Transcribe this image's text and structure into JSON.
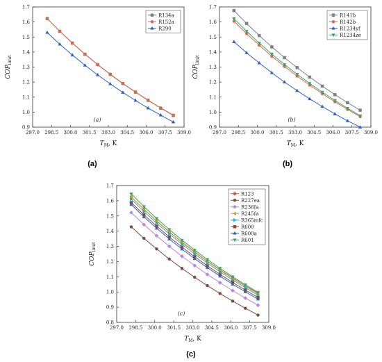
{
  "chart_data": [
    {
      "type": "line",
      "subplot_label": "(a)",
      "caption": "(a)",
      "xlabel": "T_M, K",
      "ylabel": "COP_limit",
      "xlim": [
        297.0,
        309.0
      ],
      "ylim": [
        0.9,
        1.7
      ],
      "xticks": [
        "297.0",
        "298.5",
        "300.0",
        "301.5",
        "303.0",
        "304.5",
        "306.0",
        "307.5",
        "309.0"
      ],
      "yticks": [
        "0.9",
        "1.0",
        "1.1",
        "1.2",
        "1.3",
        "1.4",
        "1.5",
        "1.6",
        "1.7"
      ],
      "legend_position": "top-right",
      "x": [
        298.15,
        299.15,
        300.15,
        301.15,
        302.15,
        303.15,
        304.15,
        305.15,
        306.15,
        307.15,
        308.15
      ],
      "series": [
        {
          "name": "R134a",
          "color": "#7f7f7f",
          "marker": "square",
          "values": [
            1.623,
            1.538,
            1.459,
            1.385,
            1.316,
            1.251,
            1.19,
            1.133,
            1.078,
            1.026,
            0.978
          ]
        },
        {
          "name": "R152a",
          "color": "#d46a4a",
          "marker": "circle",
          "values": [
            1.623,
            1.538,
            1.46,
            1.386,
            1.317,
            1.253,
            1.191,
            1.134,
            1.08,
            1.028,
            0.98
          ]
        },
        {
          "name": "R290",
          "color": "#2f5fc4",
          "marker": "triangle",
          "values": [
            1.53,
            1.452,
            1.38,
            1.312,
            1.248,
            1.188,
            1.131,
            1.078,
            1.027,
            0.98,
            0.934
          ]
        }
      ]
    },
    {
      "type": "line",
      "subplot_label": "(b)",
      "caption": "(b)",
      "xlabel": "T_M, K",
      "ylabel": "COP_limit",
      "xlim": [
        297.0,
        309.0
      ],
      "ylim": [
        0.9,
        1.7
      ],
      "xticks": [
        "297.0",
        "298.5",
        "300.0",
        "301.5",
        "303.0",
        "304.5",
        "306.0",
        "307.5",
        "309.0"
      ],
      "yticks": [
        "0.9",
        "1.0",
        "1.1",
        "1.2",
        "1.3",
        "1.4",
        "1.5",
        "1.6",
        "1.7"
      ],
      "legend_position": "top-right",
      "x": [
        298.15,
        299.15,
        300.15,
        301.15,
        302.15,
        303.15,
        304.15,
        305.15,
        306.15,
        307.15,
        308.15
      ],
      "series": [
        {
          "name": "R141b",
          "color": "#7f7f7f",
          "marker": "square",
          "values": [
            1.676,
            1.59,
            1.51,
            1.434,
            1.363,
            1.296,
            1.233,
            1.173,
            1.116,
            1.063,
            1.013
          ]
        },
        {
          "name": "R142b",
          "color": "#d46a4a",
          "marker": "circle",
          "values": [
            1.605,
            1.522,
            1.445,
            1.372,
            1.304,
            1.24,
            1.18,
            1.123,
            1.069,
            1.018,
            0.97
          ]
        },
        {
          "name": "R1234yf",
          "color": "#2f5fc4",
          "marker": "triangle",
          "values": [
            1.468,
            1.395,
            1.327,
            1.262,
            1.2,
            1.143,
            1.088,
            1.037,
            0.988,
            0.942,
            0.9
          ]
        },
        {
          "name": "R1234ze",
          "color": "#3aa36c",
          "marker": "triangle-down",
          "values": [
            1.622,
            1.538,
            1.46,
            1.386,
            1.317,
            1.252,
            1.191,
            1.133,
            1.078,
            1.026,
            0.976
          ]
        }
      ]
    },
    {
      "type": "line",
      "subplot_label": "(c)",
      "caption": "(c)",
      "xlabel": "T_M, K",
      "ylabel": "COP_limit",
      "xlim": [
        297.0,
        309.0
      ],
      "ylim": [
        0.8,
        1.7
      ],
      "xticks": [
        "297.0",
        "298.5",
        "300.0",
        "301.5",
        "303.0",
        "304.5",
        "306.0",
        "307.5",
        "309.0"
      ],
      "yticks": [
        "0.8",
        "0.9",
        "1.0",
        "1.1",
        "1.2",
        "1.3",
        "1.4",
        "1.5",
        "1.6",
        "1.7"
      ],
      "legend_position": "top-right",
      "x": [
        298.15,
        299.15,
        300.15,
        301.15,
        302.15,
        303.15,
        304.15,
        305.15,
        306.15,
        307.15,
        308.15
      ],
      "series": [
        {
          "name": "R123",
          "color": "#c4574a",
          "marker": "circle",
          "values": [
            1.625,
            1.545,
            1.468,
            1.396,
            1.328,
            1.264,
            1.203,
            1.146,
            1.092,
            1.04,
            0.992
          ]
        },
        {
          "name": "R227ea",
          "color": "#7a4a3c",
          "marker": "circle",
          "values": [
            1.428,
            1.353,
            1.283,
            1.217,
            1.155,
            1.097,
            1.042,
            0.99,
            0.94,
            0.893,
            0.848
          ]
        },
        {
          "name": "R236fa",
          "color": "#b488e0",
          "marker": "diamond",
          "values": [
            1.522,
            1.443,
            1.37,
            1.3,
            1.235,
            1.174,
            1.116,
            1.061,
            1.009,
            0.96,
            0.913
          ]
        },
        {
          "name": "R245fa",
          "color": "#c8a020",
          "marker": "triangle-left",
          "values": [
            1.625,
            1.543,
            1.466,
            1.394,
            1.326,
            1.261,
            1.201,
            1.143,
            1.089,
            1.037,
            0.988
          ]
        },
        {
          "name": "R365mfc",
          "color": "#2aa8c8",
          "marker": "triangle-right",
          "values": [
            1.61,
            1.529,
            1.453,
            1.382,
            1.314,
            1.25,
            1.19,
            1.133,
            1.079,
            1.028,
            0.979
          ]
        },
        {
          "name": "R600",
          "color": "#8a4b3a",
          "marker": "square",
          "values": [
            1.588,
            1.508,
            1.433,
            1.362,
            1.295,
            1.232,
            1.172,
            1.116,
            1.063,
            1.012,
            0.964
          ]
        },
        {
          "name": "R600a",
          "color": "#2f5fc4",
          "marker": "triangle",
          "values": [
            1.575,
            1.494,
            1.419,
            1.348,
            1.282,
            1.219,
            1.16,
            1.104,
            1.051,
            1.001,
            0.953
          ]
        },
        {
          "name": "R601",
          "color": "#3aa36c",
          "marker": "triangle-down",
          "values": [
            1.645,
            1.562,
            1.484,
            1.411,
            1.341,
            1.276,
            1.214,
            1.156,
            1.1,
            1.048,
            0.998
          ]
        }
      ]
    }
  ]
}
